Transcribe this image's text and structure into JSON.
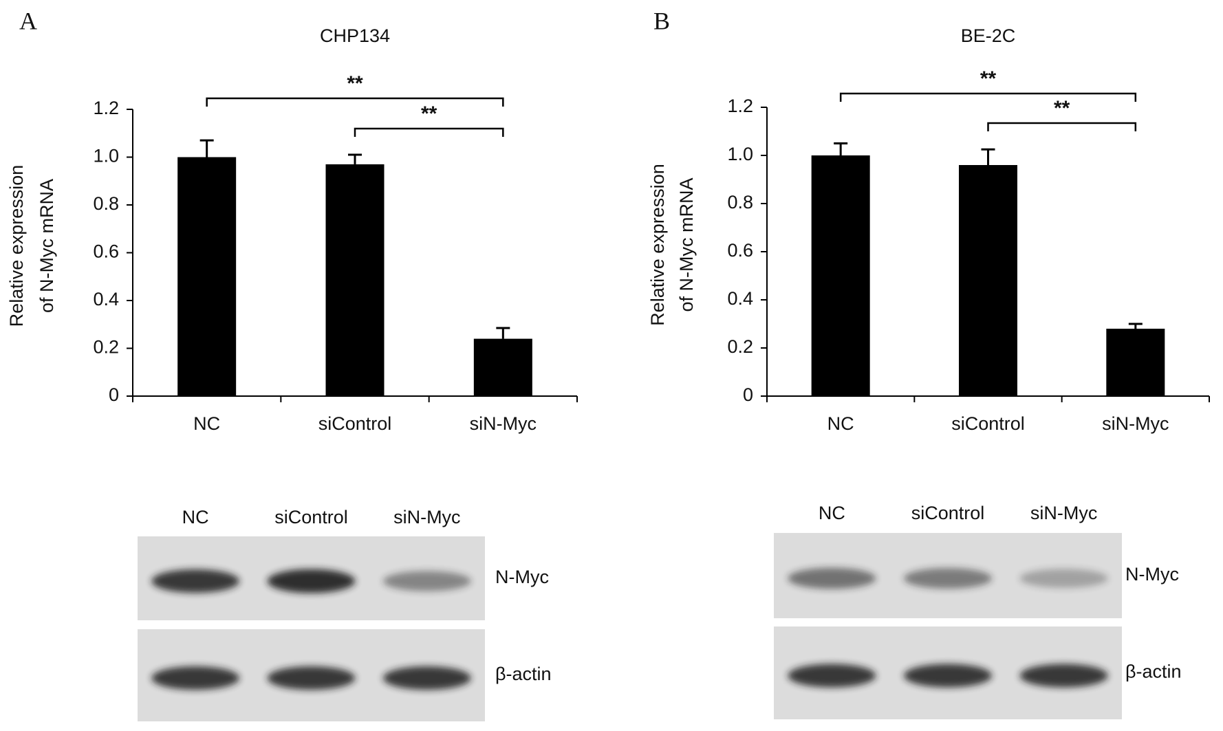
{
  "chart_data": [
    {
      "type": "bar",
      "panel": "A",
      "title": "CHP134",
      "ylabel": [
        "Relative expression",
        "of N-Myc mRNA"
      ],
      "categories": [
        "NC",
        "siControl",
        "siN-Myc"
      ],
      "values": [
        1.0,
        0.97,
        0.24
      ],
      "errors": [
        0.07,
        0.04,
        0.045
      ],
      "color": "#000000",
      "ylim": [
        0,
        1.2
      ],
      "yticks": [
        0,
        0.2,
        0.4,
        0.6,
        0.8,
        {
          "value": 1,
          "label": "1.0"
        },
        1.2
      ],
      "brackets": [
        {
          "label": "**",
          "between": [
            0,
            2
          ]
        },
        {
          "label": "**",
          "between": [
            1,
            2
          ]
        }
      ],
      "blot": {
        "lanes": [
          "NC",
          "siControl",
          "siN-Myc"
        ],
        "rows": [
          "N-Myc",
          "β-actin"
        ]
      }
    },
    {
      "type": "bar",
      "panel": "B",
      "title": "BE-2C",
      "ylabel": [
        "Relative expression",
        "of N-Myc mRNA"
      ],
      "categories": [
        "NC",
        "siControl",
        "siN-Myc"
      ],
      "values": [
        1.0,
        0.96,
        0.28
      ],
      "errors": [
        0.05,
        0.065,
        0.02
      ],
      "color": "#000000",
      "ylim": [
        0,
        1.2
      ],
      "yticks": [
        0,
        0.2,
        0.4,
        0.6,
        0.8,
        {
          "value": 1,
          "label": "1.0"
        },
        1.2
      ],
      "brackets": [
        {
          "label": "**",
          "between": [
            0,
            2
          ]
        },
        {
          "label": "**",
          "between": [
            1,
            2
          ]
        }
      ],
      "blot": {
        "lanes": [
          "NC",
          "siControl",
          "siN-Myc"
        ],
        "rows": [
          "N-Myc",
          "β-actin"
        ]
      }
    }
  ]
}
